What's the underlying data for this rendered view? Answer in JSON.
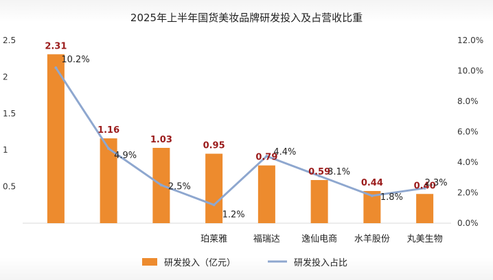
{
  "chart_data": {
    "type": "bar",
    "title": "2025年上半年国货美妆品牌研发投入及占营收比重",
    "categories": [
      "",
      "",
      "",
      "珀莱雅",
      "福瑞达",
      "逸仙电商",
      "水羊股份",
      "丸美生物"
    ],
    "series": [
      {
        "name": "研发投入（亿元）",
        "type": "bar",
        "axis": "left",
        "values": [
          2.31,
          1.16,
          1.03,
          0.95,
          0.79,
          0.59,
          0.44,
          0.4
        ],
        "labels": [
          "2.31",
          "1.16",
          "1.03",
          "0.95",
          "0.79",
          "0.59",
          "0.44",
          "0.40"
        ],
        "color": "#ed8b2e"
      },
      {
        "name": "研发投入占比",
        "type": "line",
        "axis": "right",
        "values": [
          10.2,
          4.9,
          2.5,
          1.2,
          4.4,
          3.1,
          1.8,
          2.3
        ],
        "labels": [
          "10.2%",
          "4.9%",
          "2.5%",
          "1.2%",
          "4.4%",
          "3.1%",
          "1.8%",
          "2.3%"
        ],
        "color": "#8ea7cf"
      }
    ],
    "left_axis": {
      "min": 0,
      "max": 2.5,
      "ticks": [
        "0.5",
        "1",
        "1.5",
        "2",
        "2.5"
      ],
      "tick_values": [
        0.5,
        1,
        1.5,
        2,
        2.5
      ]
    },
    "right_axis": {
      "min": 0,
      "max": 12,
      "ticks": [
        "0.0%",
        "2.0%",
        "4.0%",
        "6.0%",
        "8.0%",
        "10.0%",
        "12.0%"
      ],
      "tick_values": [
        0,
        2,
        4,
        6,
        8,
        10,
        12
      ]
    },
    "legend": {
      "position": "bottom",
      "items": [
        "研发投入（亿元）",
        "研发投入占比"
      ]
    },
    "grid": false
  }
}
